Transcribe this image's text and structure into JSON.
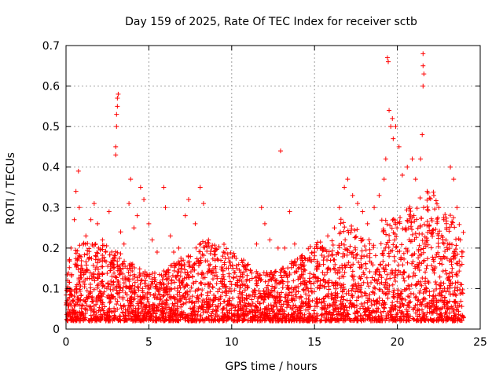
{
  "chart_data": {
    "type": "scatter",
    "title": "Day 159 of 2025, Rate Of TEC Index for receiver sctb",
    "xlabel": "GPS time / hours",
    "ylabel": "ROTI / TECUs",
    "xlim": [
      0,
      25
    ],
    "ylim": [
      0,
      0.7
    ],
    "xticks": [
      "0",
      "5",
      "10",
      "15",
      "20",
      "25"
    ],
    "yticks": [
      "0",
      "0.1",
      "0.2",
      "0.3",
      "0.4",
      "0.5",
      "0.6",
      "0.7"
    ],
    "grid": true,
    "marker": "plus",
    "color": "#ff0000",
    "series": [
      {
        "points": [
          [
            0.1,
            0.12
          ],
          [
            0.3,
            0.2
          ],
          [
            0.5,
            0.27
          ],
          [
            0.6,
            0.34
          ],
          [
            0.75,
            0.39
          ],
          [
            0.8,
            0.3
          ],
          [
            0.9,
            0.15
          ],
          [
            1.2,
            0.23
          ],
          [
            1.5,
            0.27
          ],
          [
            1.7,
            0.31
          ],
          [
            1.9,
            0.26
          ],
          [
            2.2,
            0.22
          ],
          [
            2.4,
            0.19
          ],
          [
            2.6,
            0.29
          ],
          [
            3.0,
            0.43
          ],
          [
            3.0,
            0.45
          ],
          [
            3.05,
            0.5
          ],
          [
            3.05,
            0.53
          ],
          [
            3.1,
            0.55
          ],
          [
            3.1,
            0.57
          ],
          [
            3.15,
            0.58
          ],
          [
            3.3,
            0.24
          ],
          [
            3.5,
            0.21
          ],
          [
            3.8,
            0.31
          ],
          [
            3.9,
            0.37
          ],
          [
            4.1,
            0.25
          ],
          [
            4.3,
            0.28
          ],
          [
            4.5,
            0.35
          ],
          [
            4.7,
            0.32
          ],
          [
            5.0,
            0.26
          ],
          [
            5.2,
            0.22
          ],
          [
            5.5,
            0.19
          ],
          [
            5.9,
            0.35
          ],
          [
            6.0,
            0.3
          ],
          [
            6.3,
            0.23
          ],
          [
            6.5,
            0.19
          ],
          [
            6.8,
            0.2
          ],
          [
            7.2,
            0.28
          ],
          [
            7.4,
            0.32
          ],
          [
            7.8,
            0.26
          ],
          [
            8.1,
            0.35
          ],
          [
            8.3,
            0.31
          ],
          [
            8.6,
            0.22
          ],
          [
            9.0,
            0.17
          ],
          [
            9.5,
            0.19
          ],
          [
            9.8,
            0.15
          ],
          [
            10.2,
            0.14
          ],
          [
            10.6,
            0.17
          ],
          [
            11.0,
            0.16
          ],
          [
            11.5,
            0.21
          ],
          [
            11.8,
            0.3
          ],
          [
            12.0,
            0.26
          ],
          [
            12.3,
            0.22
          ],
          [
            12.8,
            0.2
          ],
          [
            12.95,
            0.44
          ],
          [
            13.2,
            0.2
          ],
          [
            13.5,
            0.29
          ],
          [
            13.8,
            0.21
          ],
          [
            14.2,
            0.18
          ],
          [
            14.6,
            0.17
          ],
          [
            15.0,
            0.19
          ],
          [
            15.4,
            0.2
          ],
          [
            15.8,
            0.23
          ],
          [
            16.2,
            0.25
          ],
          [
            16.5,
            0.3
          ],
          [
            16.8,
            0.35
          ],
          [
            17.0,
            0.37
          ],
          [
            17.3,
            0.33
          ],
          [
            17.6,
            0.31
          ],
          [
            17.9,
            0.29
          ],
          [
            18.2,
            0.26
          ],
          [
            18.6,
            0.3
          ],
          [
            18.9,
            0.33
          ],
          [
            19.2,
            0.37
          ],
          [
            19.3,
            0.42
          ],
          [
            19.4,
            0.67
          ],
          [
            19.45,
            0.66
          ],
          [
            19.5,
            0.54
          ],
          [
            19.6,
            0.5
          ],
          [
            19.7,
            0.52
          ],
          [
            19.75,
            0.47
          ],
          [
            19.9,
            0.5
          ],
          [
            20.1,
            0.45
          ],
          [
            20.3,
            0.38
          ],
          [
            20.6,
            0.4
          ],
          [
            20.9,
            0.42
          ],
          [
            21.1,
            0.37
          ],
          [
            21.4,
            0.42
          ],
          [
            21.5,
            0.48
          ],
          [
            21.55,
            0.6
          ],
          [
            21.6,
            0.63
          ],
          [
            21.55,
            0.65
          ],
          [
            21.55,
            0.68
          ],
          [
            21.8,
            0.34
          ],
          [
            22.2,
            0.33
          ],
          [
            22.5,
            0.3
          ],
          [
            22.8,
            0.27
          ],
          [
            23.2,
            0.4
          ],
          [
            23.4,
            0.37
          ],
          [
            23.6,
            0.3
          ],
          [
            23.8,
            0.22
          ],
          [
            23.9,
            0.16
          ]
        ]
      }
    ]
  }
}
